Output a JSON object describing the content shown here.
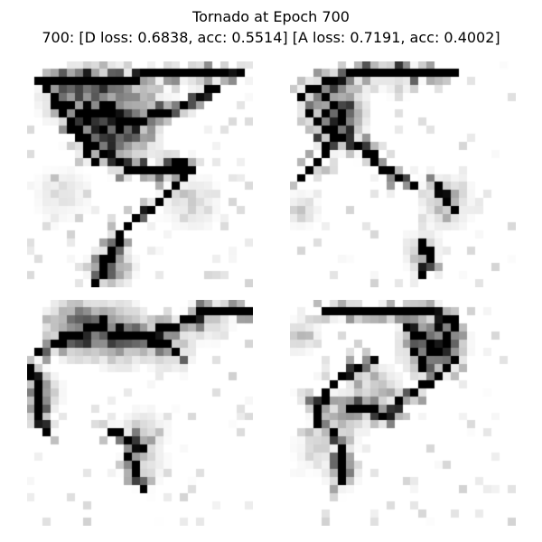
{
  "figure": {
    "title_line1": "Tornado at Epoch 700",
    "title_line2": "700: [D loss: 0.6838, acc: 0.5514]  [A loss: 0.7191, acc: 0.4002]"
  },
  "samples": [
    {
      "grid": 28,
      "strokes": [
        [
          [
            1,
            2
          ],
          [
            5,
            2
          ],
          [
            10,
            2
          ],
          [
            16,
            1
          ],
          [
            21,
            1
          ],
          [
            26,
            1
          ]
        ],
        [
          [
            3,
            4
          ],
          [
            6,
            6
          ],
          [
            9,
            6
          ],
          [
            12,
            7
          ],
          [
            17,
            6
          ],
          [
            23,
            3
          ]
        ],
        [
          [
            5,
            7
          ],
          [
            7,
            9
          ],
          [
            9,
            11
          ],
          [
            13,
            13
          ],
          [
            16,
            13
          ],
          [
            19,
            12
          ]
        ],
        [
          [
            12,
            13
          ],
          [
            15,
            13
          ],
          [
            18,
            13
          ],
          [
            20,
            13
          ]
        ],
        [
          [
            19,
            14
          ],
          [
            17,
            16
          ],
          [
            15,
            18
          ],
          [
            13,
            19
          ],
          [
            11,
            21
          ],
          [
            10,
            23
          ],
          [
            9,
            25
          ],
          [
            8,
            27
          ]
        ],
        [
          [
            2,
            3
          ],
          [
            4,
            6
          ],
          [
            6,
            9
          ],
          [
            8,
            12
          ]
        ]
      ],
      "blobs": [
        [
          8,
          4,
          3.5,
          0.7
        ],
        [
          12,
          8,
          3.0,
          0.65
        ],
        [
          9,
          9,
          2.5,
          0.55
        ],
        [
          4,
          4,
          2.5,
          0.3
        ],
        [
          14,
          4,
          2.0,
          0.35
        ],
        [
          4,
          16,
          2.5,
          0.15
        ],
        [
          20,
          17,
          2.5,
          0.2
        ],
        [
          10,
          25,
          2.0,
          0.55
        ]
      ],
      "speckle": 0.06
    },
    {
      "grid": 28,
      "strokes": [
        [
          [
            1,
            4
          ],
          [
            4,
            2
          ],
          [
            8,
            1
          ],
          [
            12,
            1
          ],
          [
            16,
            1
          ],
          [
            20,
            1
          ]
        ],
        [
          [
            2,
            6
          ],
          [
            4,
            8
          ],
          [
            6,
            9
          ],
          [
            8,
            10
          ],
          [
            10,
            11
          ]
        ],
        [
          [
            4,
            4
          ],
          [
            6,
            6
          ],
          [
            5,
            9
          ],
          [
            3,
            12
          ],
          [
            1,
            14
          ]
        ],
        [
          [
            9,
            11
          ],
          [
            11,
            13
          ],
          [
            13,
            14
          ],
          [
            15,
            15
          ]
        ],
        [
          [
            18,
            15
          ],
          [
            19,
            17
          ],
          [
            20,
            18
          ]
        ],
        [
          [
            16,
            22
          ],
          [
            17,
            24
          ],
          [
            16,
            26
          ]
        ]
      ],
      "blobs": [
        [
          5,
          5,
          3.0,
          0.7
        ],
        [
          6,
          8,
          2.0,
          0.5
        ],
        [
          19,
          17,
          2.5,
          0.3
        ],
        [
          16,
          23,
          1.8,
          0.3
        ],
        [
          13,
          1,
          2.0,
          0.2
        ],
        [
          1,
          18,
          1.5,
          0.25
        ]
      ],
      "speckle": 0.05
    },
    {
      "grid": 28,
      "strokes": [
        [
          [
            1,
            6
          ],
          [
            3,
            5
          ],
          [
            5,
            4
          ],
          [
            8,
            3
          ],
          [
            11,
            4
          ],
          [
            14,
            4
          ]
        ],
        [
          [
            14,
            4
          ],
          [
            17,
            3
          ],
          [
            20,
            2
          ],
          [
            22,
            1
          ],
          [
            25,
            1
          ],
          [
            27,
            1
          ]
        ],
        [
          [
            0,
            8
          ],
          [
            1,
            10
          ],
          [
            1,
            12
          ],
          [
            1,
            14
          ],
          [
            2,
            16
          ]
        ],
        [
          [
            15,
            5
          ],
          [
            17,
            5
          ],
          [
            18,
            6
          ]
        ],
        [
          [
            10,
            16
          ],
          [
            12,
            17
          ],
          [
            14,
            18
          ]
        ],
        [
          [
            12,
            19
          ],
          [
            13,
            21
          ],
          [
            14,
            23
          ]
        ]
      ],
      "blobs": [
        [
          6,
          3,
          3.0,
          0.7
        ],
        [
          11,
          4,
          3.0,
          0.6
        ],
        [
          1,
          11,
          2.0,
          0.45
        ],
        [
          17,
          5,
          2.5,
          0.4
        ],
        [
          14,
          16,
          2.2,
          0.25
        ],
        [
          14,
          20,
          2.0,
          0.2
        ],
        [
          22,
          2,
          2.0,
          0.25
        ]
      ],
      "speckle": 0.05
    },
    {
      "grid": 28,
      "strokes": [
        [
          [
            4,
            1
          ],
          [
            7,
            1
          ],
          [
            10,
            1
          ],
          [
            13,
            1
          ],
          [
            16,
            1
          ],
          [
            20,
            2
          ]
        ],
        [
          [
            14,
            3
          ],
          [
            16,
            4
          ],
          [
            17,
            5
          ],
          [
            18,
            6
          ],
          [
            20,
            3
          ]
        ],
        [
          [
            15,
            6
          ],
          [
            16,
            7
          ],
          [
            16,
            8
          ]
        ],
        [
          [
            10,
            7
          ],
          [
            8,
            8
          ],
          [
            6,
            9
          ],
          [
            4,
            11
          ],
          [
            3,
            13
          ],
          [
            3,
            15
          ]
        ],
        [
          [
            7,
            13
          ],
          [
            9,
            13
          ],
          [
            11,
            14
          ],
          [
            13,
            13
          ]
        ],
        [
          [
            5,
            16
          ],
          [
            6,
            18
          ],
          [
            6,
            20
          ],
          [
            6,
            22
          ]
        ],
        [
          [
            13,
            12
          ],
          [
            15,
            11
          ],
          [
            18,
            9
          ],
          [
            20,
            7
          ]
        ]
      ],
      "blobs": [
        [
          17,
          5,
          3.0,
          0.6
        ],
        [
          10,
          11,
          2.5,
          0.3
        ],
        [
          6,
          14,
          2.5,
          0.35
        ],
        [
          19,
          5,
          2.0,
          0.4
        ],
        [
          6,
          21,
          1.5,
          0.35
        ],
        [
          1,
          4,
          1.5,
          0.3
        ],
        [
          3,
          18,
          2.0,
          0.2
        ]
      ],
      "speckle": 0.05
    }
  ]
}
